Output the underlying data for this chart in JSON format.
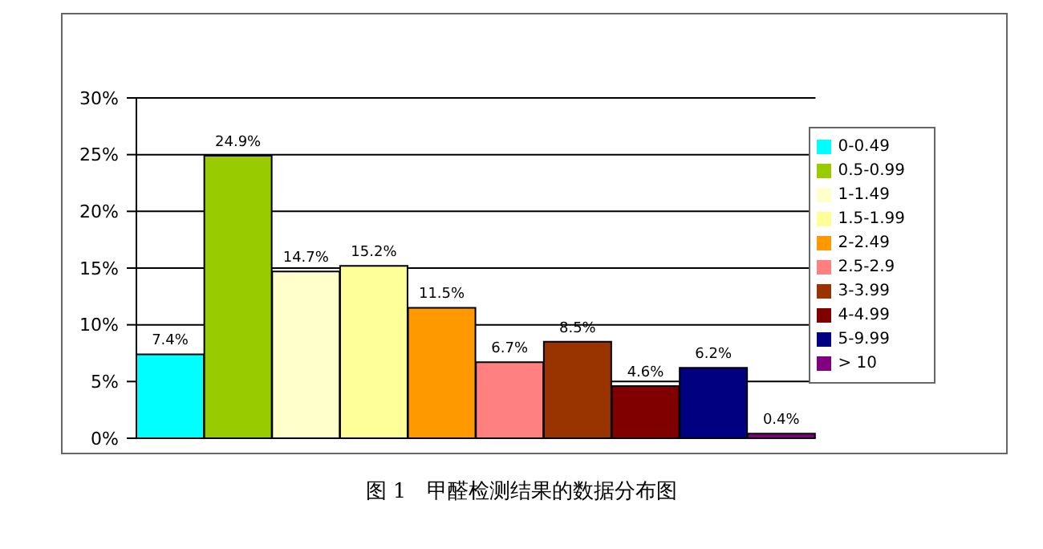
{
  "chart_data": {
    "type": "bar",
    "title": "图 1　甲醛检测结果的数据分布图",
    "categories": [
      null,
      null,
      null,
      null,
      null,
      null,
      null,
      null,
      null,
      null
    ],
    "stacked": true,
    "series": [
      {
        "name": "0-0.49",
        "color": "#00ffff",
        "values": [
          7.4,
          null,
          null,
          null,
          null,
          null,
          null,
          null,
          null,
          null
        ],
        "value_labels": [
          "7.4%",
          null,
          null,
          null,
          null,
          null,
          null,
          null,
          null,
          null
        ]
      },
      {
        "name": "0.5-0.99",
        "color": "#99cc00",
        "values": [
          null,
          24.9,
          null,
          null,
          null,
          null,
          null,
          null,
          null,
          null
        ],
        "value_labels": [
          null,
          "24.9%",
          null,
          null,
          null,
          null,
          null,
          null,
          null,
          null
        ]
      },
      {
        "name": "1-1.49",
        "color": "#ffffcc",
        "values": [
          null,
          null,
          14.7,
          null,
          null,
          null,
          null,
          null,
          null,
          null
        ],
        "value_labels": [
          null,
          null,
          "14.7%",
          null,
          null,
          null,
          null,
          null,
          null,
          null
        ]
      },
      {
        "name": "1.5-1.99",
        "color": "#ffff99",
        "values": [
          null,
          null,
          null,
          15.2,
          null,
          null,
          null,
          null,
          null,
          null
        ],
        "value_labels": [
          null,
          null,
          null,
          "15.2%",
          null,
          null,
          null,
          null,
          null,
          null
        ]
      },
      {
        "name": "2-2.49",
        "color": "#ff9900",
        "values": [
          null,
          null,
          null,
          null,
          11.5,
          null,
          null,
          null,
          null,
          null
        ],
        "value_labels": [
          null,
          null,
          null,
          null,
          "11.5%",
          null,
          null,
          null,
          null,
          null
        ]
      },
      {
        "name": "2.5-2.9",
        "color": "#ff8080",
        "values": [
          null,
          null,
          null,
          null,
          null,
          6.7,
          null,
          null,
          null,
          null
        ],
        "value_labels": [
          null,
          null,
          null,
          null,
          null,
          "6.7%",
          null,
          null,
          null,
          null
        ]
      },
      {
        "name": "3-3.99",
        "color": "#993300",
        "values": [
          null,
          null,
          null,
          null,
          null,
          null,
          8.5,
          null,
          null,
          null
        ],
        "value_labels": [
          null,
          null,
          null,
          null,
          null,
          null,
          "8.5%",
          null,
          null,
          null
        ]
      },
      {
        "name": "4-4.99",
        "color": "#800000",
        "values": [
          null,
          null,
          null,
          null,
          null,
          null,
          null,
          4.6,
          null,
          null
        ],
        "value_labels": [
          null,
          null,
          null,
          null,
          null,
          null,
          null,
          "4.6%",
          null,
          null
        ]
      },
      {
        "name": "5-9.99",
        "color": "#000080",
        "values": [
          null,
          null,
          null,
          null,
          null,
          null,
          null,
          null,
          6.2,
          null
        ],
        "value_labels": [
          null,
          null,
          null,
          null,
          null,
          null,
          null,
          null,
          "6.2%",
          null
        ]
      },
      {
        "name": "> 10",
        "color": "#800080",
        "values": [
          null,
          null,
          null,
          null,
          null,
          null,
          null,
          null,
          null,
          0.4
        ],
        "value_labels": [
          null,
          null,
          null,
          null,
          null,
          null,
          null,
          null,
          null,
          "0.4%"
        ]
      }
    ],
    "ylim": [
      0,
      30
    ],
    "yticks": [
      {
        "value": 0,
        "label": "0%"
      },
      {
        "value": 5,
        "label": "5%"
      },
      {
        "value": 10,
        "label": "10%"
      },
      {
        "value": 15,
        "label": "15%"
      },
      {
        "value": 20,
        "label": "20%"
      },
      {
        "value": 25,
        "label": "25%"
      },
      {
        "value": 30,
        "label": "30%"
      }
    ],
    "tick_labels": "y",
    "grid": "y",
    "legend": "right"
  }
}
